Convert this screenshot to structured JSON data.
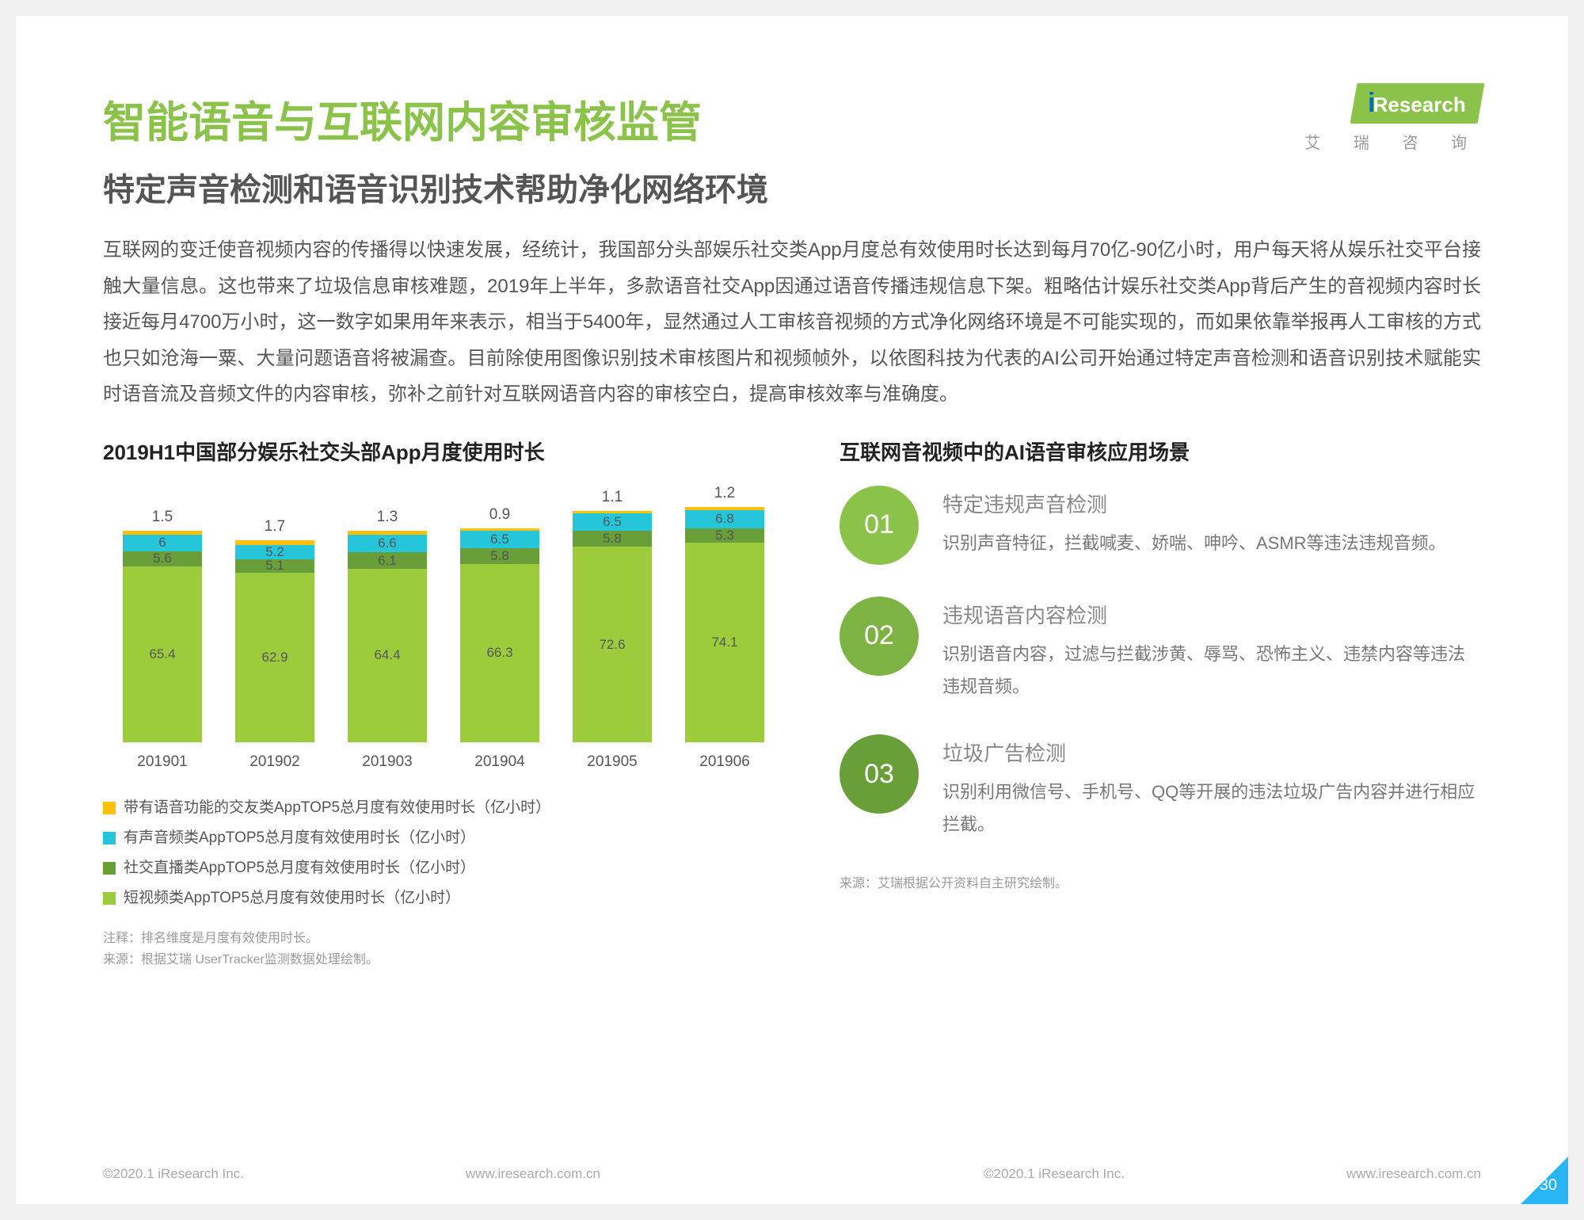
{
  "logo": {
    "brand": "Research",
    "prefix": "i",
    "sub": "艾 瑞 咨 询"
  },
  "title": "智能语音与互联网内容审核监管",
  "subtitle": "特定声音检测和语音识别技术帮助净化网络环境",
  "body": "互联网的变迁使音视频内容的传播得以快速发展，经统计，我国部分头部娱乐社交类App月度总有效使用时长达到每月70亿-90亿小时，用户每天将从娱乐社交平台接触大量信息。这也带来了垃圾信息审核难题，2019年上半年，多款语音社交App因通过语音传播违规信息下架。粗略估计娱乐社交类App背后产生的音视频内容时长接近每月4700万小时，这一数字如果用年来表示，相当于5400年，显然通过人工审核音视频的方式净化网络环境是不可能实现的，而如果依靠举报再人工审核的方式也只如沧海一粟、大量问题语音将被漏查。目前除使用图像识别技术审核图片和视频帧外，以依图科技为代表的AI公司开始通过特定声音检测和语音识别技术赋能实时语音流及音频文件的内容审核，弥补之前针对互联网语音内容的审核空白，提高审核效率与准确度。",
  "chart": {
    "title": "2019H1中国部分娱乐社交头部App月度使用时长",
    "type": "stacked-bar",
    "scale": 3.4,
    "categories": [
      "201901",
      "201902",
      "201903",
      "201904",
      "201905",
      "201906"
    ],
    "series": [
      {
        "name": "短视频类AppTOP5总月度有效使用时长（亿小时）",
        "color": "#9ccc3c",
        "values": [
          65.4,
          62.9,
          64.4,
          66.3,
          72.6,
          74.1
        ]
      },
      {
        "name": "社交直播类AppTOP5总月度有效使用时长（亿小时）",
        "color": "#689f38",
        "values": [
          5.6,
          5.1,
          6.1,
          5.8,
          5.8,
          5.3
        ]
      },
      {
        "name": "有声音频类AppTOP5总月度有效使用时长（亿小时）",
        "color": "#26c6da",
        "values": [
          6.0,
          5.2,
          6.6,
          6.5,
          6.5,
          6.8
        ]
      },
      {
        "name": "带有语音功能的交友类AppTOP5总月度有效使用时长（亿小时）",
        "color": "#ffc107",
        "values": [
          1.5,
          1.7,
          1.3,
          0.9,
          1.1,
          1.2
        ]
      }
    ],
    "footnote_1": "注释：排名维度是月度有效使用时长。",
    "footnote_2": "来源：根据艾瑞 UserTracker监测数据处理绘制。"
  },
  "right": {
    "title": "互联网音视频中的AI语音审核应用场景",
    "footnote": "来源：艾瑞根据公开资料自主研究绘制。",
    "items": [
      {
        "num": "01",
        "color": "#8bc34a",
        "title": "特定违规声音检测",
        "desc": "识别声音特征，拦截喊麦、娇喘、呻吟、ASMR等违法违规音频。"
      },
      {
        "num": "02",
        "color": "#7cb342",
        "title": "违规语音内容检测",
        "desc": "识别语音内容，过滤与拦截涉黄、辱骂、恐怖主义、违禁内容等违法违规音频。"
      },
      {
        "num": "03",
        "color": "#689f38",
        "title": "垃圾广告检测",
        "desc": "识别利用微信号、手机号、QQ等开展的违法垃圾广告内容并进行相应拦截。"
      }
    ]
  },
  "footer": {
    "copyright": "©2020.1 iResearch Inc.",
    "url": "www.iresearch.com.cn",
    "page": "30"
  }
}
